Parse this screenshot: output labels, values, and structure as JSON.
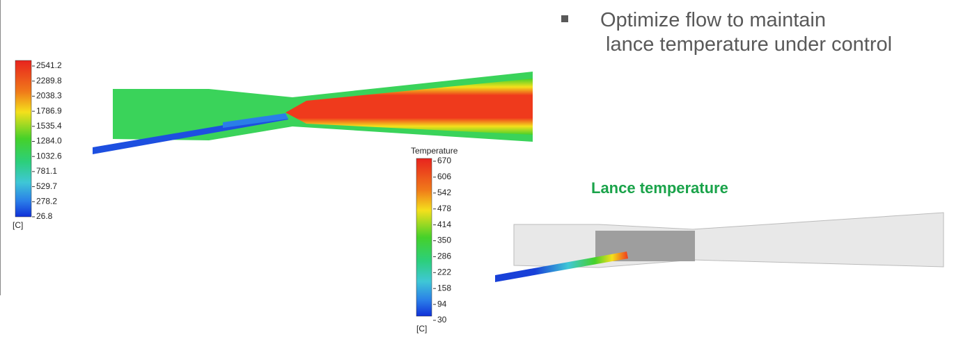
{
  "bullet": {
    "lines": [
      "Optimize flow to maintain",
      "lance temperature under control"
    ]
  },
  "legend_left": {
    "ticks": [
      "2541.2",
      "2289.8",
      "2038.3",
      "1786.9",
      "1535.4",
      "1284.0",
      "1032.6",
      "781.1",
      "529.7",
      "278.2",
      "26.8"
    ],
    "unit": "[C]"
  },
  "legend_right": {
    "title": "Temperature",
    "ticks": [
      "670",
      "606",
      "542",
      "478",
      "414",
      "350",
      "286",
      "222",
      "158",
      "94",
      "30"
    ],
    "unit": "[C]"
  },
  "caption": "Lance temperature"
}
